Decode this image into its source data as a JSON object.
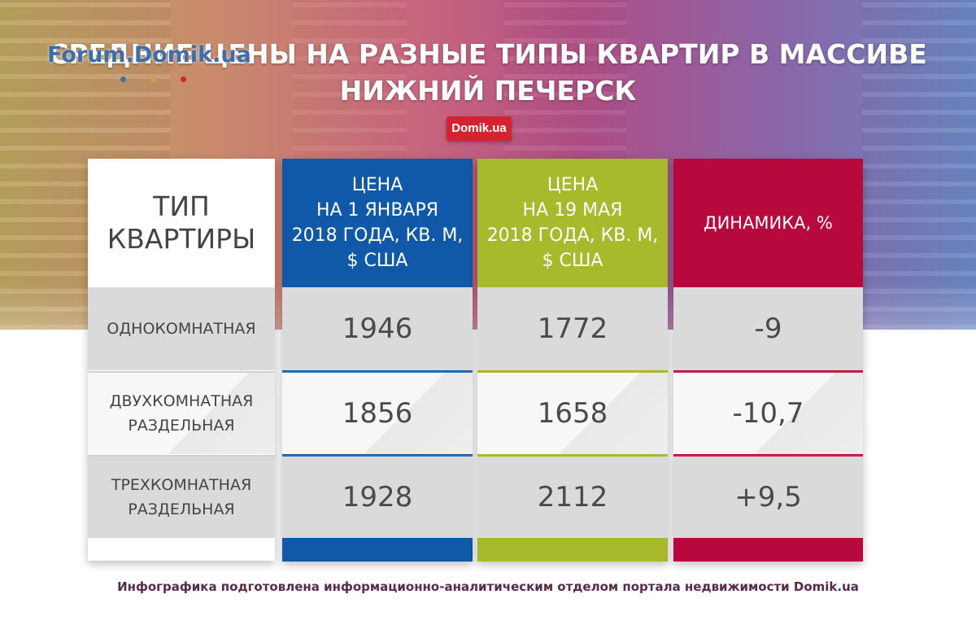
{
  "logo": {
    "text": "Forum.Domik.ua"
  },
  "title": {
    "line1": "СРЕДНИЕ ЦЕНЫ НА РАЗНЫЕ ТИПЫ КВАРТИР В МАССИВЕ",
    "line2": "НИЖНИЙ ПЕЧЕРСК"
  },
  "badge": "Domik.ua",
  "headers": {
    "type": [
      "ТИП",
      "КВАРТИРЫ"
    ],
    "jan": [
      "ЦЕНА",
      "НА 1 ЯНВАРЯ",
      "2018 ГОДА, КВ. М,",
      "$ США"
    ],
    "may": [
      "ЦЕНА",
      "НА 19 МАЯ",
      "2018 ГОДА, КВ. М,",
      "$ США"
    ],
    "dyn": "ДИНАМИКА, %"
  },
  "rows": [
    {
      "type": [
        "ОДНОКОМНАТНАЯ"
      ],
      "jan": "1946",
      "may": "1772",
      "dyn": "-9"
    },
    {
      "type": [
        "ДВУХКОМНАТНАЯ",
        "РАЗДЕЛЬНАЯ"
      ],
      "jan": "1856",
      "may": "1658",
      "dyn": "-10,7"
    },
    {
      "type": [
        "ТРЕХКОМНАТНАЯ",
        "РАЗДЕЛЬНАЯ"
      ],
      "jan": "1928",
      "may": "2112",
      "dyn": "+9,5"
    }
  ],
  "colors": {
    "jan": "#0f59a8",
    "may": "#a8b92b",
    "dyn": "#b8093e",
    "badge": "#d4232f"
  },
  "footer": "Инфографика подготовлена информационно-аналитическим отделом портала недвижимости Domik.ua"
}
